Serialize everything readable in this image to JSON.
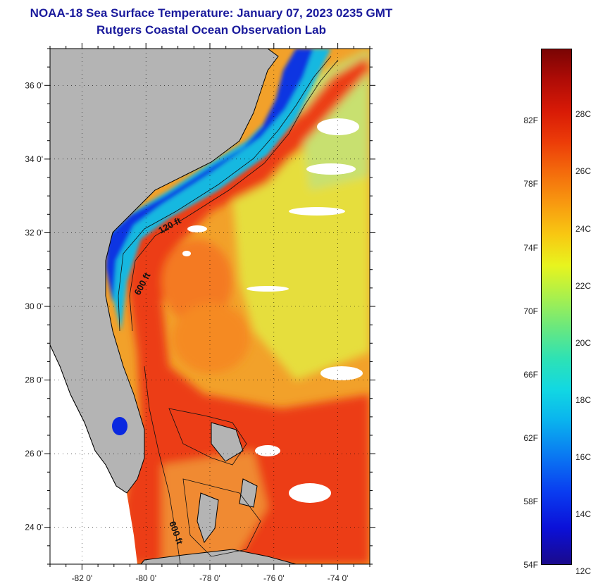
{
  "header": {
    "title": "NOAA-18 Sea Surface Temperature:  January 07, 2023 0235 GMT",
    "subtitle": "Rutgers Coastal Ocean Observation Lab"
  },
  "map": {
    "lon_range": [
      -83,
      -73
    ],
    "lat_range": [
      23,
      37
    ],
    "lon_ticks": [
      "-82 0'",
      "-80 0'",
      "-78 0'",
      "-76 0'",
      "-74 0'"
    ],
    "lat_ticks": [
      "36 0'",
      "34 0'",
      "32 0'",
      "30 0'",
      "28 0'",
      "26 0'",
      "24 0'"
    ],
    "contour_labels": [
      "120 ft",
      "600 ft",
      "600 ft"
    ],
    "colors": {
      "land": "#b4b4b4",
      "warm": "#ee3c12",
      "mid": "#f8a020",
      "cool": "#e8e040",
      "cold": "#0a28e0"
    }
  },
  "colorbar": {
    "fahrenheit_labels": [
      "82F",
      "78F",
      "74F",
      "70F",
      "66F",
      "62F",
      "58F",
      "54F"
    ],
    "celsius_labels": [
      "28C",
      "26C",
      "24C",
      "22C",
      "20C",
      "18C",
      "16C",
      "14C",
      "12C"
    ]
  }
}
